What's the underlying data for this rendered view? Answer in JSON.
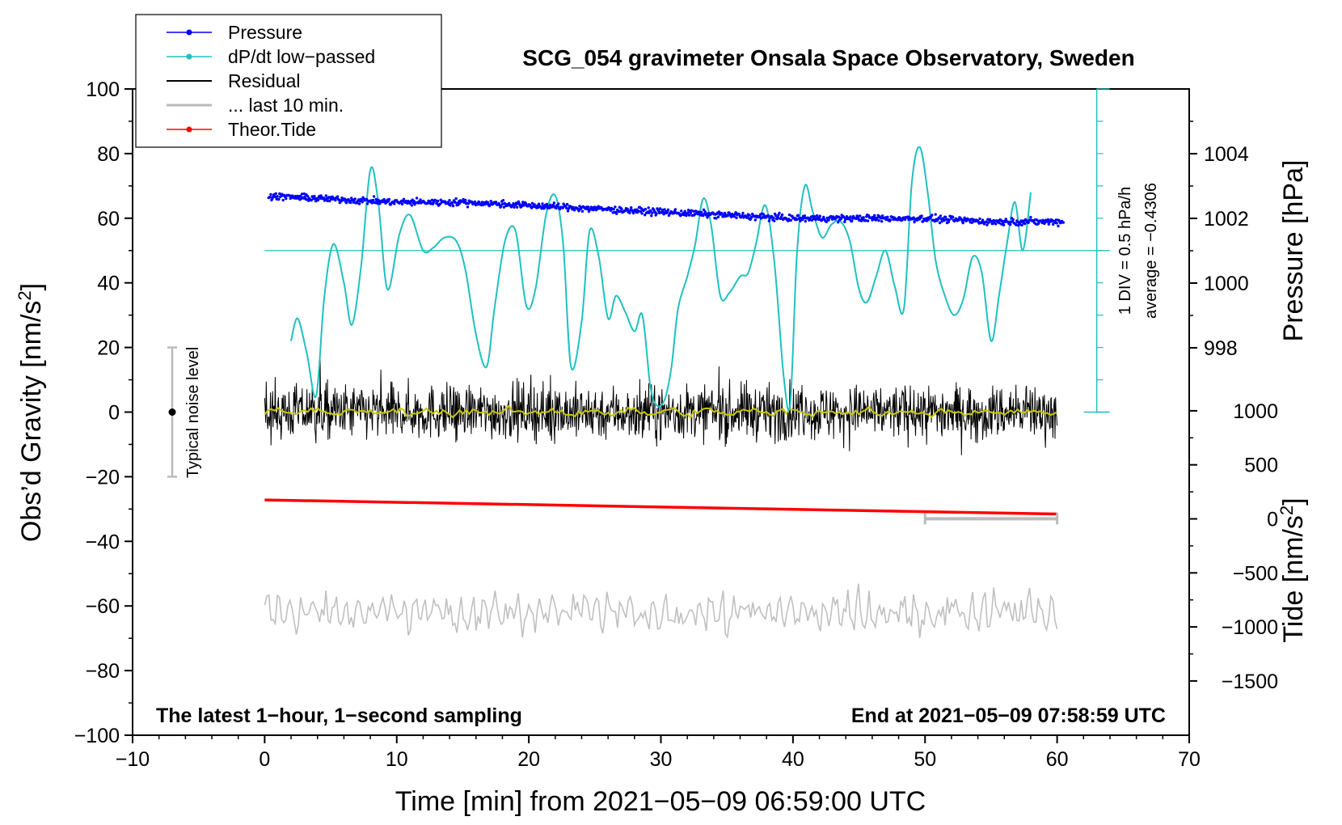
{
  "chart_data": {
    "type": "line",
    "title": "SCG_054 gravimeter Onsala Space Observatory, Sweden",
    "xlabel": "Time [min] from 2021−05−09 06:59:00 UTC",
    "ylabel": "Obs’d Gravity [nm/s",
    "ylabel_sup": "2",
    "ylabel_close": "]",
    "right_ylabel_pressure": "Pressure [hPa]",
    "right_ylabel_tide": "Tide [nm/s",
    "right_ylabel_tide_sup": "2",
    "right_ylabel_tide_close": "]",
    "xlim": [
      -10,
      70
    ],
    "ylim": [
      -100,
      100
    ],
    "x_ticks": [
      "−10",
      "0",
      "10",
      "20",
      "30",
      "40",
      "50",
      "60",
      "70"
    ],
    "y_ticks": [
      "100",
      "80",
      "60",
      "40",
      "20",
      "0",
      "−20",
      "−40",
      "−60",
      "−80",
      "−100"
    ],
    "pressure_ticks": [
      "1004",
      "1002",
      "1000",
      "998"
    ],
    "tide_ticks": [
      "1000",
      "500",
      "0",
      "−500",
      "−1000",
      "−1500"
    ],
    "note_left": "The latest 1−hour, 1−second sampling",
    "note_right": "End at 2021−05−09 07:58:59 UTC",
    "dpdt_scale_label": "1 DIV = 0.5 hPa/h",
    "dpdt_average_label": "average = −0.4306",
    "noise_label": "Typical noise level",
    "legend": [
      "Pressure",
      "dP/dt low−passed",
      "Residual",
      "... last 10 min.",
      "Theor.Tide"
    ],
    "series": [
      {
        "name": "Pressure",
        "unit": "hPa",
        "color": "#0000ff",
        "x": [
          0,
          5,
          10,
          15,
          20,
          25,
          30,
          35,
          40,
          45,
          50,
          55,
          60
        ],
        "values": [
          1002.7,
          1002.6,
          1002.5,
          1002.5,
          1002.4,
          1002.3,
          1002.2,
          1002.1,
          1002.0,
          1002.0,
          1002.0,
          1001.9,
          1001.9
        ]
      },
      {
        "name": "dP/dt low−passed",
        "unit": "nm/s2 plot units",
        "color": "#20c0c0",
        "x": [
          2.0,
          2.5,
          3.2,
          3.9,
          4.5,
          5.2,
          6.0,
          6.6,
          7.3,
          8.0,
          8.6,
          9.3,
          10.2,
          11.0,
          12.0,
          12.8,
          13.6,
          14.5,
          15.2,
          16.0,
          16.8,
          17.4,
          18.2,
          19.0,
          19.8,
          20.5,
          21.3,
          22.0,
          22.6,
          23.2,
          24.0,
          24.6,
          25.3,
          26.0,
          26.6,
          27.3,
          28.0,
          28.6,
          29.2,
          29.7,
          30.3,
          30.8,
          31.3,
          32.0,
          32.6,
          33.2,
          33.8,
          34.5,
          35.2,
          36.0,
          36.6,
          37.2,
          37.9,
          38.6,
          39.3,
          39.8,
          40.3,
          40.9,
          41.5,
          42.2,
          42.9,
          43.6,
          44.3,
          45.0,
          45.6,
          46.3,
          47.0,
          47.7,
          48.4,
          49.0,
          49.6,
          50.2,
          50.8,
          51.5,
          52.2,
          52.9,
          53.6,
          54.3,
          55.0,
          55.6,
          56.2,
          56.8,
          57.4,
          58.0
        ],
        "values": [
          22,
          29,
          18,
          5,
          35,
          52,
          40,
          27,
          45,
          75,
          65,
          38,
          55,
          61,
          50,
          51,
          54,
          53,
          44,
          24,
          14,
          32,
          53,
          56,
          33,
          38,
          61,
          67,
          52,
          14,
          28,
          56,
          48,
          29,
          36,
          31,
          25,
          30,
          8,
          2,
          4,
          14,
          32,
          42,
          52,
          66,
          58,
          36,
          37,
          42,
          43,
          52,
          64,
          46,
          11,
          3,
          49,
          70,
          62,
          54,
          58,
          59,
          53,
          38,
          34,
          42,
          50,
          39,
          32,
          71,
          82,
          68,
          47,
          36,
          30,
          35,
          48,
          43,
          22,
          36,
          52,
          65,
          50,
          68
        ]
      },
      {
        "name": "Residual",
        "unit": "nm/s2",
        "color": "#000000",
        "x": [
          0,
          60
        ],
        "values": [
          0,
          0
        ],
        "amplitude": 10
      },
      {
        "name": "... last 10 min.",
        "unit": "min",
        "color": "#bbbbbb",
        "x": [
          50,
          60
        ],
        "values": [
          -33,
          -33
        ]
      },
      {
        "name": "Theor.Tide",
        "unit": "nm/s2",
        "color": "#ff0000",
        "x": [
          0,
          60
        ],
        "values": [
          175,
          45
        ]
      },
      {
        "name": "Residual low−passed",
        "unit": "nm/s2",
        "color": "#c8c800",
        "x": [
          0,
          60
        ],
        "values": [
          0,
          0
        ]
      },
      {
        "name": "Residual (shifted, last 10 min. style)",
        "unit": "nm/s2",
        "color": "#c0c0c0",
        "x": [
          0,
          60
        ],
        "values": [
          -62,
          -62
        ],
        "amplitude": 8
      }
    ],
    "noise_bar": {
      "x": -7,
      "center": 0,
      "low": -20,
      "high": 20
    }
  }
}
